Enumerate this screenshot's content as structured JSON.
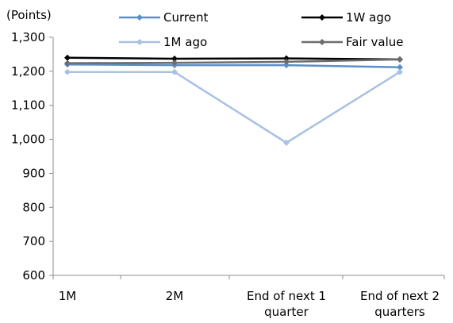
{
  "chart_data": {
    "type": "line",
    "ylabel": "(Points)",
    "categories": [
      [
        "1M"
      ],
      [
        "2M"
      ],
      [
        "End of next 1",
        "quarter"
      ],
      [
        "End of next 2",
        "quarters"
      ]
    ],
    "ylim": [
      600,
      1300
    ],
    "yticks": [
      600,
      700,
      800,
      900,
      1000,
      1100,
      1200,
      1300
    ],
    "ytick_labels": [
      "600",
      "700",
      "800",
      "900",
      "1,000",
      "1,100",
      "1,200",
      "1,300"
    ],
    "grid": false,
    "legend_position": "top",
    "series": [
      {
        "name": "Current",
        "color": "#5b8fca",
        "values": [
          1220,
          1218,
          1218,
          1212
        ]
      },
      {
        "name": "1W ago",
        "color": "#000000",
        "values": [
          1240,
          1237,
          1238,
          1235
        ]
      },
      {
        "name": "1M ago",
        "color": "#a9c0e4",
        "values": [
          1198,
          1198,
          990,
          1198
        ]
      },
      {
        "name": "Fair value",
        "color": "#6d6d6d",
        "values": [
          1224,
          1225,
          1228,
          1235
        ]
      }
    ]
  }
}
